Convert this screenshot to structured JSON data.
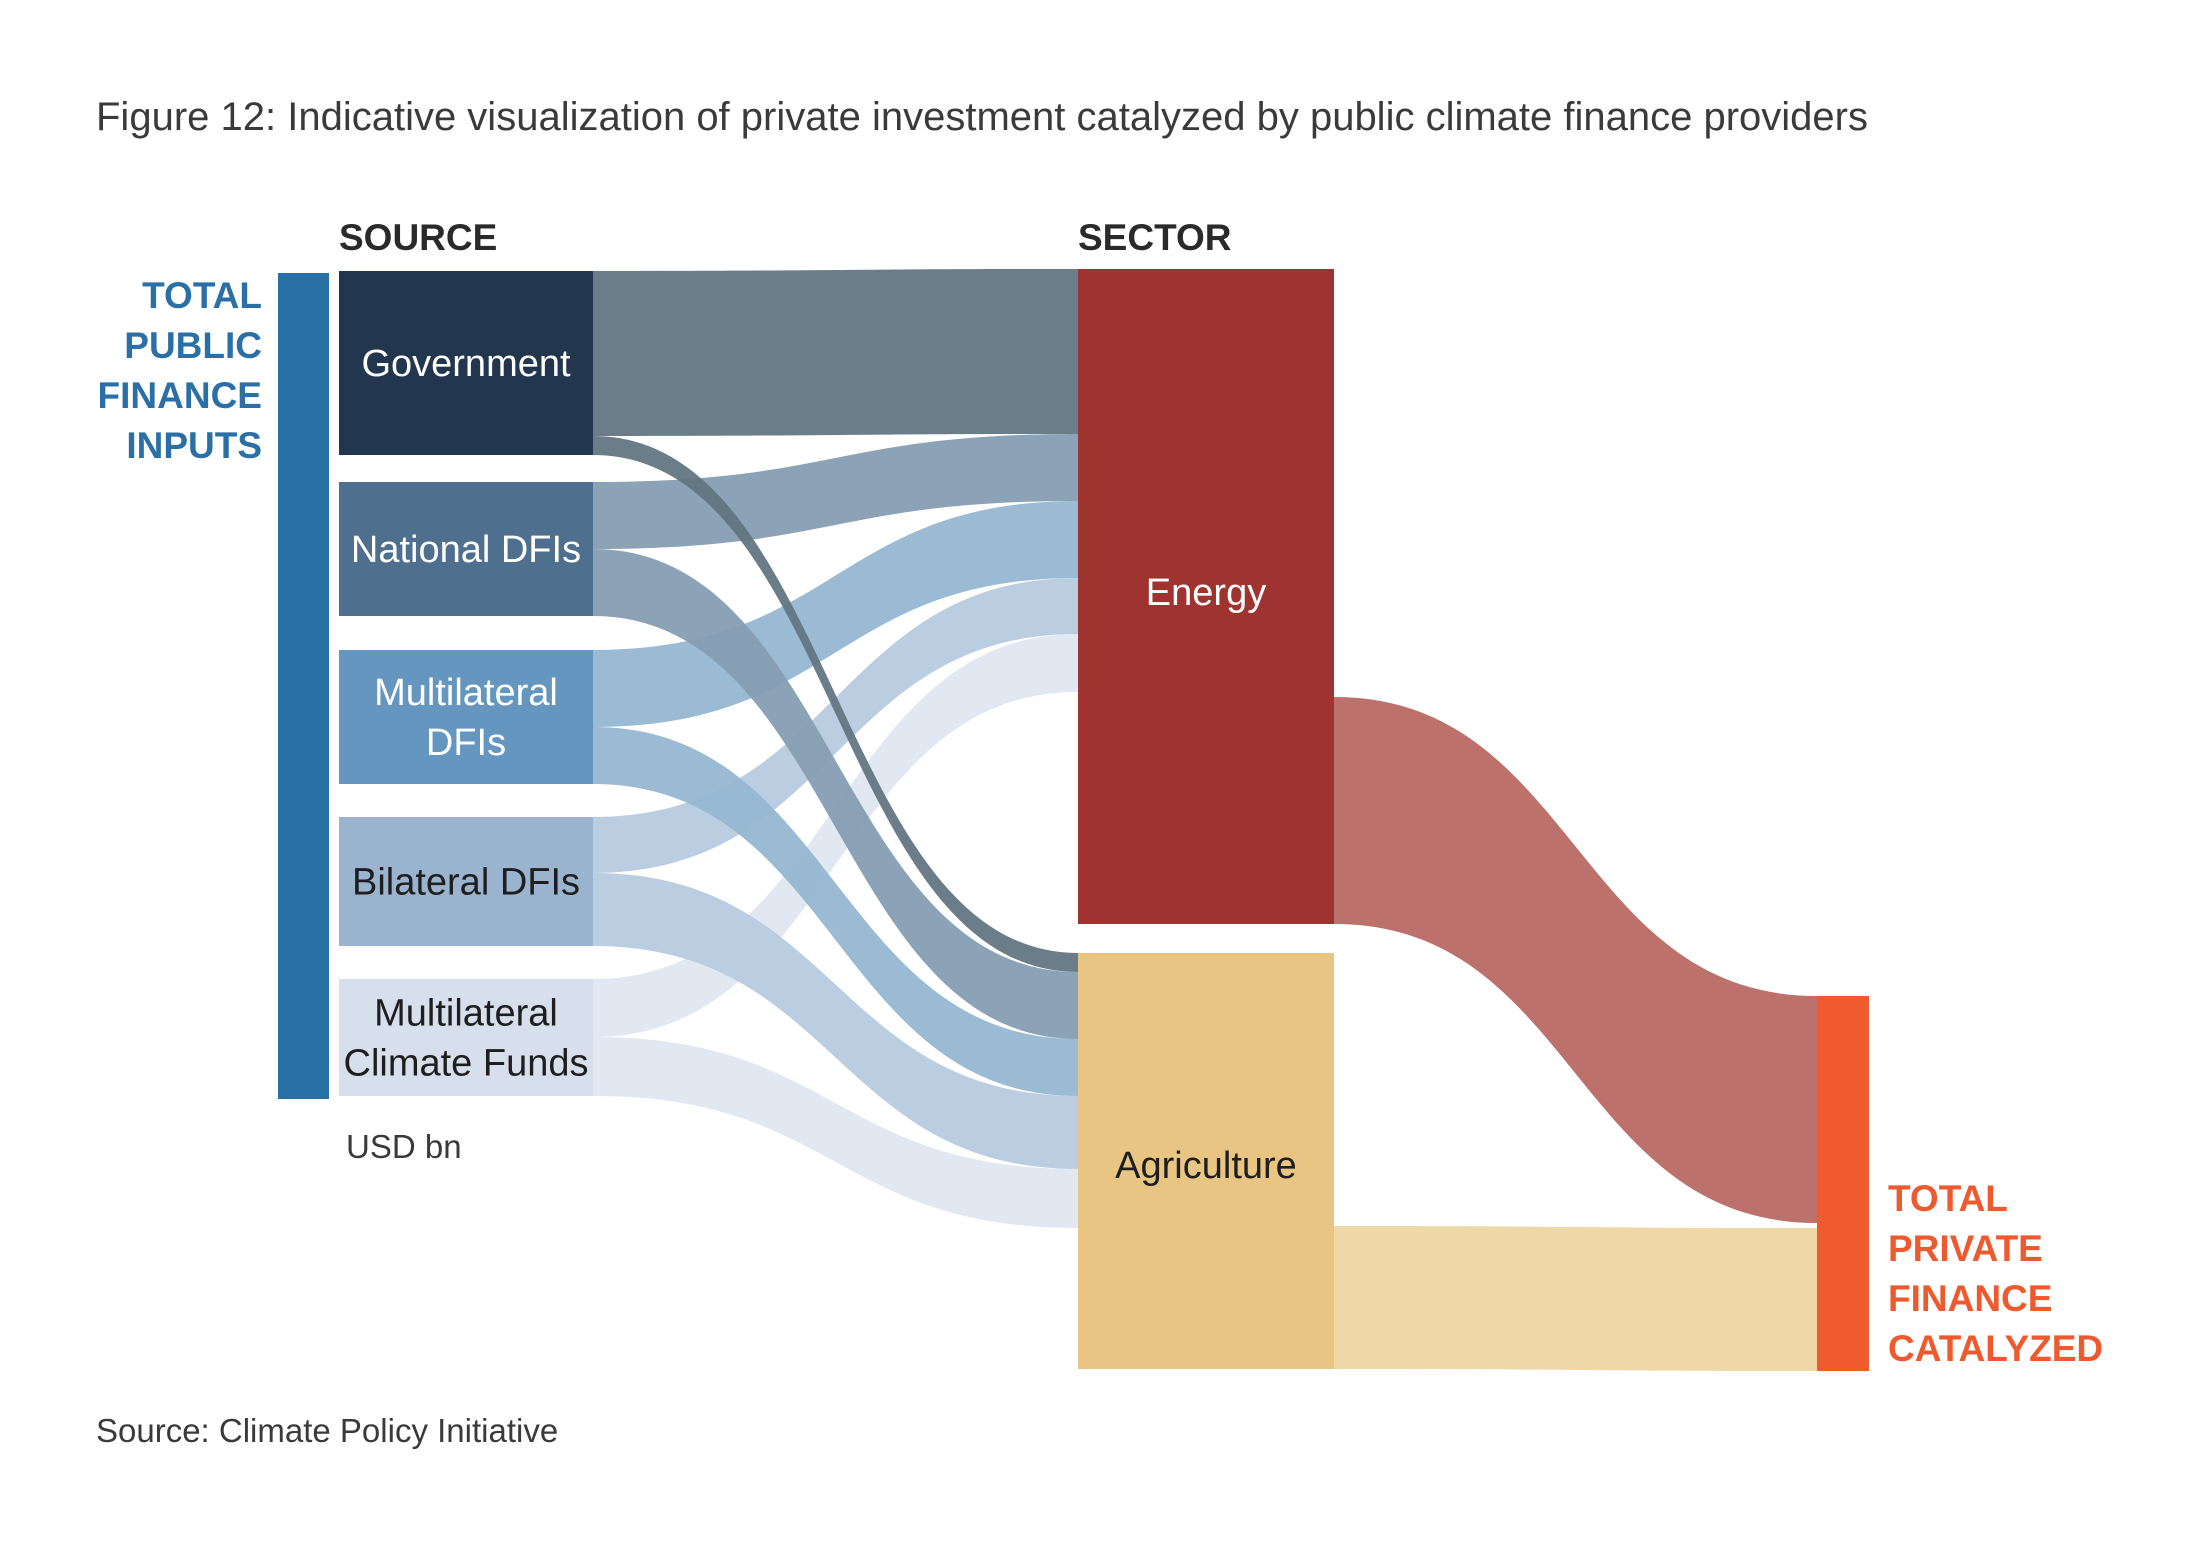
{
  "chart_data": {
    "type": "sankey",
    "title": "Figure 12: Indicative visualization of private investment catalyzed by public climate finance providers",
    "unit_label": "USD bn",
    "source_note": "Source: Climate Policy Initiative",
    "column_headers": {
      "source": "SOURCE",
      "sector": "SECTOR"
    },
    "left_label": [
      "TOTAL",
      "PUBLIC",
      "FINANCE",
      "INPUTS"
    ],
    "right_label": [
      "TOTAL",
      "PRIVATE",
      "FINANCE",
      "CATALYZED"
    ],
    "sources": [
      {
        "id": "gov",
        "label": [
          "Government"
        ],
        "color": "#22374d",
        "flow_color": "#627682",
        "text_color": "#ffffff"
      },
      {
        "id": "nat",
        "label": [
          "National DFIs"
        ],
        "color": "#4e6f8e",
        "flow_color": "#869db2",
        "text_color": "#ffffff"
      },
      {
        "id": "mul",
        "label": [
          "Multilateral",
          "DFIs"
        ],
        "color": "#6596bf",
        "flow_color": "#96b7d2",
        "text_color": "#ffffff"
      },
      {
        "id": "bil",
        "label": [
          "Bilateral DFIs"
        ],
        "color": "#9ab3cf",
        "flow_color": "#b7cbdf",
        "text_color": "#1e1e1e"
      },
      {
        "id": "mcf",
        "label": [
          "Multilateral",
          "Climate Funds"
        ],
        "color": "#d6dfeb",
        "flow_color": "#e0e7f1",
        "text_color": "#1e1e1e"
      }
    ],
    "sectors": [
      {
        "id": "energy",
        "label": "Energy",
        "color": "#9e3330",
        "flow_color": "#bd716c",
        "text_color": "#ffffff",
        "value": 65.5
      },
      {
        "id": "agri",
        "label": "Agriculture",
        "color": "#e8c583",
        "flow_color": "#efd8a7",
        "text_color": "#1e1e1e",
        "value": 41.6
      }
    ],
    "public_total_color": "#2870a5",
    "private_total_color": "#ef5a2f",
    "flows_source_to_sector": [
      {
        "from": "gov",
        "to": "energy",
        "value": 16.5
      },
      {
        "from": "gov",
        "to": "agri",
        "value": 1.9
      },
      {
        "from": "nat",
        "to": "energy",
        "value": 6.7
      },
      {
        "from": "nat",
        "to": "agri",
        "value": 6.7
      },
      {
        "from": "mul",
        "to": "energy",
        "value": 7.7
      },
      {
        "from": "mul",
        "to": "agri",
        "value": 5.7
      },
      {
        "from": "bil",
        "to": "energy",
        "value": 5.6
      },
      {
        "from": "bil",
        "to": "agri",
        "value": 7.3
      },
      {
        "from": "mcf",
        "to": "energy",
        "value": 5.8
      },
      {
        "from": "mcf",
        "to": "agri",
        "value": 5.9
      }
    ],
    "flows_sector_to_private": [
      {
        "from": "energy",
        "value": 22.7
      },
      {
        "from": "agri",
        "value": 14.3
      }
    ]
  }
}
